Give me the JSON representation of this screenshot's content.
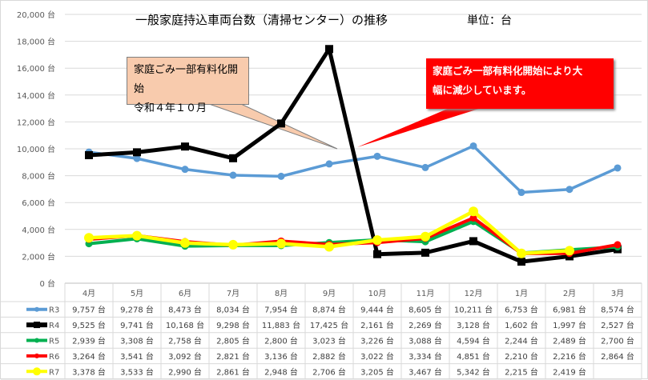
{
  "chart_data": {
    "type": "line",
    "title": "一般家庭持込車両台数（清掃センター）の推移",
    "unit_label": "単位：台",
    "categories": [
      "4月",
      "5月",
      "6月",
      "7月",
      "8月",
      "9月",
      "10月",
      "11月",
      "12月",
      "1月",
      "2月",
      "3月"
    ],
    "ylim": [
      0,
      20000
    ],
    "yticks": [
      "0 台",
      "2,000 台",
      "4,000 台",
      "6,000 台",
      "8,000 台",
      "10,000 台",
      "12,000 台",
      "14,000 台",
      "16,000 台",
      "18,000 台",
      "20,000 台"
    ],
    "grid": true,
    "legend": "data-table",
    "series": [
      {
        "name": "R3",
        "color": "#5b9bd5",
        "marker": "circle",
        "values": [
          9757,
          9278,
          8473,
          8034,
          7954,
          8874,
          9444,
          8605,
          10211,
          6753,
          6981,
          8574
        ],
        "labels": [
          "9,757 台",
          "9,278 台",
          "8,473 台",
          "8,034 台",
          "7,954 台",
          "8,874 台",
          "9,444 台",
          "8,605 台",
          "10,211 台",
          "6,753 台",
          "6,981 台",
          "8,574 台"
        ]
      },
      {
        "name": "R4",
        "color": "#000000",
        "marker": "square",
        "values": [
          9525,
          9741,
          10168,
          9298,
          11883,
          17425,
          2161,
          2269,
          3128,
          1602,
          1997,
          2527
        ],
        "labels": [
          "9,525 台",
          "9,741 台",
          "10,168 台",
          "9,298 台",
          "11,883 台",
          "17,425 台",
          "2,161 台",
          "2,269 台",
          "3,128 台",
          "1,602 台",
          "1,997 台",
          "2,527 台"
        ]
      },
      {
        "name": "R5",
        "color": "#00b050",
        "marker": "circle",
        "values": [
          2939,
          3308,
          2758,
          2805,
          2800,
          3023,
          3226,
          3088,
          4594,
          2244,
          2489,
          2700
        ],
        "labels": [
          "2,939 台",
          "3,308 台",
          "2,758 台",
          "2,805 台",
          "2,800 台",
          "3,023 台",
          "3,226 台",
          "3,088 台",
          "4,594 台",
          "2,244 台",
          "2,489 台",
          "2,700 台"
        ]
      },
      {
        "name": "R6",
        "color": "#ff0000",
        "marker": "circle",
        "values": [
          3264,
          3541,
          3092,
          2821,
          3136,
          2882,
          3022,
          3334,
          4851,
          2210,
          2216,
          2864
        ],
        "labels": [
          "3,264 台",
          "3,541 台",
          "3,092 台",
          "2,821 台",
          "3,136 台",
          "2,882 台",
          "3,022 台",
          "3,334 台",
          "4,851 台",
          "2,210 台",
          "2,216 台",
          "2,864 台"
        ]
      },
      {
        "name": "R7",
        "color": "#ffff00",
        "marker": "circle",
        "values": [
          3378,
          3533,
          2990,
          2861,
          2948,
          2706,
          3205,
          3467,
          5342,
          2215,
          2419,
          null
        ],
        "labels": [
          "3,378 台",
          "3,533 台",
          "2,990 台",
          "2,861 台",
          "2,948 台",
          "2,706 台",
          "3,205 台",
          "3,467 台",
          "5,342 台",
          "2,215 台",
          "2,419 台",
          ""
        ]
      }
    ],
    "annotations": [
      {
        "text": [
          "家庭ごみ一部有料化開始",
          "令和４年１０月"
        ],
        "fill": "#f8cbad"
      },
      {
        "text": [
          "家庭ごみ一部有料化開始により大",
          "幅に減少しています。"
        ],
        "fill": "#ff0000"
      }
    ]
  }
}
